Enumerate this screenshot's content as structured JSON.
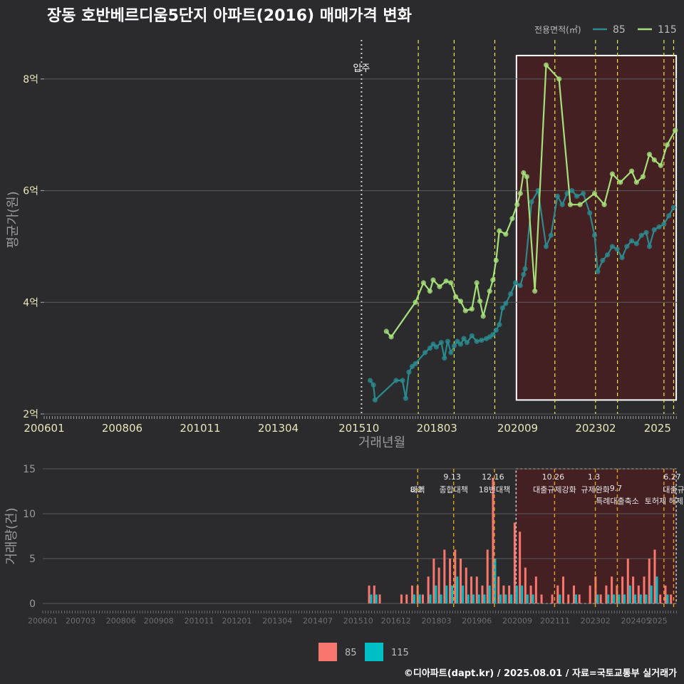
{
  "title": "장동 호반베르디움5단지 아파트(2016) 매매가격 변화",
  "footer": "©디아파트(dapt.kr) / 2025.08.01 / 자료=국토교통부 실거래가",
  "colors": {
    "bg": "#2b2b2d",
    "s85": "#2a8a8e",
    "s115": "#a6e07a",
    "bar85": "#f8766d",
    "bar115": "#00bfc4",
    "policy": "#e8e84a",
    "policy_bottom": "#e0a020",
    "highlight_fill": "#4a1f22",
    "highlight_border": "#ffffff",
    "grid": "#5a5a5a",
    "tick_text": "#e6e6b8",
    "axis_title": "#9a9a9a"
  },
  "chart_data": [
    {
      "type": "line",
      "title": "장동 호반베르디움5단지 아파트(2016) 매매가격 변화",
      "xlabel": "거래년월",
      "ylabel": "평균가(원)",
      "xlim": [
        2006.0,
        2025.6
      ],
      "ylim": [
        2.0,
        8.7
      ],
      "x_ticks": [
        "200601",
        "200806",
        "201011",
        "201304",
        "201510",
        "201803",
        "202009",
        "202302",
        "2025"
      ],
      "y_ticks": [
        {
          "value": 2,
          "label": "2억"
        },
        {
          "value": 4,
          "label": "4억"
        },
        {
          "value": 6,
          "label": "6억"
        },
        {
          "value": 8,
          "label": "8억"
        }
      ],
      "legend_title": "전용면적(㎡)",
      "legend": [
        "85",
        "115"
      ],
      "legend_position": "top-right",
      "move_in": {
        "x": 2015.83,
        "label": "입주"
      },
      "policy_lines": [
        2017.59,
        2018.7,
        2019.96,
        2021.82,
        2023.08,
        2023.76,
        2025.2,
        2025.5
      ],
      "highlight_range": {
        "x_from": 2020.63,
        "x_to": 2025.58,
        "y_from": 2.25,
        "y_to": 8.42
      },
      "series": [
        {
          "name": "85",
          "points": [
            [
              2016.1,
              2.6
            ],
            [
              2016.2,
              2.52
            ],
            [
              2016.25,
              2.25
            ],
            [
              2016.9,
              2.6
            ],
            [
              2017.1,
              2.6
            ],
            [
              2017.2,
              2.28
            ],
            [
              2017.3,
              2.75
            ],
            [
              2017.4,
              2.85
            ],
            [
              2017.5,
              2.9
            ],
            [
              2017.8,
              3.1
            ],
            [
              2017.95,
              3.18
            ],
            [
              2018.05,
              3.25
            ],
            [
              2018.15,
              3.2
            ],
            [
              2018.3,
              3.28
            ],
            [
              2018.4,
              3.0
            ],
            [
              2018.5,
              3.3
            ],
            [
              2018.6,
              3.1
            ],
            [
              2018.7,
              3.22
            ],
            [
              2018.8,
              3.3
            ],
            [
              2018.9,
              3.25
            ],
            [
              2019.0,
              3.35
            ],
            [
              2019.1,
              3.28
            ],
            [
              2019.25,
              3.4
            ],
            [
              2019.4,
              3.3
            ],
            [
              2019.55,
              3.32
            ],
            [
              2019.7,
              3.35
            ],
            [
              2019.8,
              3.38
            ],
            [
              2019.9,
              3.42
            ],
            [
              2020.0,
              3.5
            ],
            [
              2020.1,
              3.6
            ],
            [
              2020.2,
              3.9
            ],
            [
              2020.3,
              3.98
            ],
            [
              2020.45,
              4.15
            ],
            [
              2020.6,
              4.35
            ],
            [
              2020.75,
              4.3
            ],
            [
              2020.85,
              4.5
            ],
            [
              2020.9,
              4.6
            ],
            [
              2021.1,
              5.8
            ],
            [
              2021.3,
              6.0
            ],
            [
              2021.55,
              5.0
            ],
            [
              2021.7,
              5.2
            ],
            [
              2021.9,
              5.9
            ],
            [
              2022.05,
              5.75
            ],
            [
              2022.2,
              5.95
            ],
            [
              2022.35,
              6.0
            ],
            [
              2022.5,
              5.9
            ],
            [
              2022.7,
              5.95
            ],
            [
              2022.9,
              5.6
            ],
            [
              2023.05,
              5.2
            ],
            [
              2023.15,
              4.55
            ],
            [
              2023.3,
              4.75
            ],
            [
              2023.45,
              4.85
            ],
            [
              2023.6,
              5.0
            ],
            [
              2023.75,
              4.95
            ],
            [
              2023.9,
              4.8
            ],
            [
              2024.05,
              5.0
            ],
            [
              2024.2,
              5.1
            ],
            [
              2024.35,
              5.05
            ],
            [
              2024.5,
              5.2
            ],
            [
              2024.65,
              5.25
            ],
            [
              2024.75,
              5.0
            ],
            [
              2024.9,
              5.3
            ],
            [
              2025.05,
              5.35
            ],
            [
              2025.2,
              5.4
            ],
            [
              2025.35,
              5.55
            ],
            [
              2025.5,
              5.7
            ]
          ]
        },
        {
          "name": "115",
          "points": [
            [
              2016.6,
              3.48
            ],
            [
              2016.75,
              3.38
            ],
            [
              2017.5,
              4.0
            ],
            [
              2017.75,
              4.35
            ],
            [
              2017.95,
              4.2
            ],
            [
              2018.05,
              4.4
            ],
            [
              2018.25,
              4.28
            ],
            [
              2018.45,
              4.38
            ],
            [
              2018.6,
              4.35
            ],
            [
              2018.75,
              4.1
            ],
            [
              2018.9,
              4.02
            ],
            [
              2019.05,
              3.85
            ],
            [
              2019.25,
              3.88
            ],
            [
              2019.4,
              4.35
            ],
            [
              2019.5,
              4.02
            ],
            [
              2019.6,
              3.75
            ],
            [
              2019.8,
              4.2
            ],
            [
              2019.9,
              4.4
            ],
            [
              2020.0,
              4.75
            ],
            [
              2020.1,
              5.28
            ],
            [
              2020.3,
              5.22
            ],
            [
              2020.5,
              5.5
            ],
            [
              2020.65,
              5.75
            ],
            [
              2020.75,
              5.95
            ],
            [
              2020.85,
              6.32
            ],
            [
              2020.95,
              6.25
            ],
            [
              2021.2,
              4.2
            ],
            [
              2021.55,
              8.25
            ],
            [
              2021.95,
              8.0
            ],
            [
              2022.3,
              5.75
            ],
            [
              2022.6,
              5.75
            ],
            [
              2023.05,
              5.95
            ],
            [
              2023.35,
              5.75
            ],
            [
              2023.6,
              6.3
            ],
            [
              2023.85,
              6.15
            ],
            [
              2024.2,
              6.35
            ],
            [
              2024.35,
              6.15
            ],
            [
              2024.55,
              6.25
            ],
            [
              2024.75,
              6.65
            ],
            [
              2024.9,
              6.55
            ],
            [
              2025.1,
              6.45
            ],
            [
              2025.3,
              6.82
            ],
            [
              2025.55,
              7.08
            ]
          ]
        }
      ]
    },
    {
      "type": "bar",
      "xlabel": "",
      "ylabel": "거래량(건)",
      "ylim": [
        0,
        15
      ],
      "y_ticks": [
        0,
        5,
        10,
        15
      ],
      "x_ticks": [
        "200601",
        "200703",
        "200806",
        "200908",
        "201011",
        "201201",
        "201304",
        "201407",
        "201510",
        "201612",
        "201803",
        "201906",
        "202009",
        "202111",
        "202302",
        "202405",
        "2025"
      ],
      "legend": [
        "85",
        "115"
      ],
      "legend_position": "bottom",
      "highlight_range": {
        "x_from": 2020.63,
        "x_to": 2025.58
      },
      "policy_events": [
        {
          "x": 2017.59,
          "date": "8.2",
          "label": "대책"
        },
        {
          "x": 2018.7,
          "date": "9.13",
          "label": "종합대책"
        },
        {
          "x": 2019.96,
          "date": "12.16",
          "label": "18번대책"
        },
        {
          "x": 2021.82,
          "date": "10.26",
          "label": "대출규제강화"
        },
        {
          "x": 2023.08,
          "date": "1.3",
          "label": "규제완화"
        },
        {
          "x": 2023.76,
          "date": "9.7",
          "label": "특례대출축소"
        },
        {
          "x": 2025.2,
          "date": "",
          "label": "토허제 해제"
        },
        {
          "x": 2025.5,
          "date": "6.27",
          "label": "대출규"
        }
      ],
      "series": [
        {
          "name": "85",
          "x": [
            2016.12,
            2016.28,
            2016.45,
            2016.62,
            2016.78,
            2016.95,
            2017.12,
            2017.28,
            2017.45,
            2017.62,
            2017.78,
            2017.95,
            2018.12,
            2018.28,
            2018.45,
            2018.62,
            2018.78,
            2018.95,
            2019.12,
            2019.28,
            2019.45,
            2019.62,
            2019.78,
            2019.95,
            2020.12,
            2020.28,
            2020.45,
            2020.62,
            2020.78,
            2020.95,
            2021.12,
            2021.28,
            2021.45,
            2021.62,
            2021.78,
            2021.95,
            2022.12,
            2022.28,
            2022.45,
            2022.62,
            2022.78,
            2022.95,
            2023.12,
            2023.28,
            2023.45,
            2023.62,
            2023.78,
            2023.95,
            2024.12,
            2024.28,
            2024.45,
            2024.62,
            2024.78,
            2024.95,
            2025.12,
            2025.28,
            2025.45
          ],
          "values": [
            2,
            2,
            1,
            0,
            0,
            0,
            1,
            1,
            2,
            2,
            1,
            3,
            5,
            4,
            6,
            5,
            6,
            5,
            4,
            3,
            3,
            2,
            6,
            14,
            3,
            2,
            2,
            9,
            8,
            4,
            2,
            3,
            1,
            0,
            1,
            2,
            3,
            1,
            2,
            1,
            0,
            2,
            3,
            1,
            2,
            3,
            2,
            3,
            5,
            3,
            2,
            3,
            5,
            6,
            1,
            2,
            1
          ]
        },
        {
          "name": "115",
          "x": [
            2016.12,
            2016.28,
            2016.45,
            2016.62,
            2016.78,
            2016.95,
            2017.12,
            2017.28,
            2017.45,
            2017.62,
            2017.78,
            2017.95,
            2018.12,
            2018.28,
            2018.45,
            2018.62,
            2018.78,
            2018.95,
            2019.12,
            2019.28,
            2019.45,
            2019.62,
            2019.78,
            2019.95,
            2020.12,
            2020.28,
            2020.45,
            2020.62,
            2020.78,
            2020.95,
            2021.12,
            2021.28,
            2021.45,
            2021.62,
            2021.78,
            2021.95,
            2022.12,
            2022.28,
            2022.45,
            2022.62,
            2022.78,
            2022.95,
            2023.12,
            2023.28,
            2023.45,
            2023.62,
            2023.78,
            2023.95,
            2024.12,
            2024.28,
            2024.45,
            2024.62,
            2024.78,
            2024.95,
            2025.12,
            2025.28,
            2025.45
          ],
          "values": [
            1,
            1,
            0,
            0,
            0,
            0,
            0,
            0,
            1,
            1,
            0,
            1,
            2,
            1,
            2,
            2,
            3,
            2,
            1,
            1,
            1,
            1,
            2,
            5,
            1,
            1,
            1,
            2,
            2,
            1,
            1,
            0,
            0,
            0,
            0,
            1,
            0,
            0,
            1,
            0,
            0,
            0,
            1,
            0,
            1,
            1,
            1,
            1,
            2,
            1,
            1,
            1,
            2,
            3,
            0,
            1,
            0
          ]
        }
      ]
    }
  ]
}
